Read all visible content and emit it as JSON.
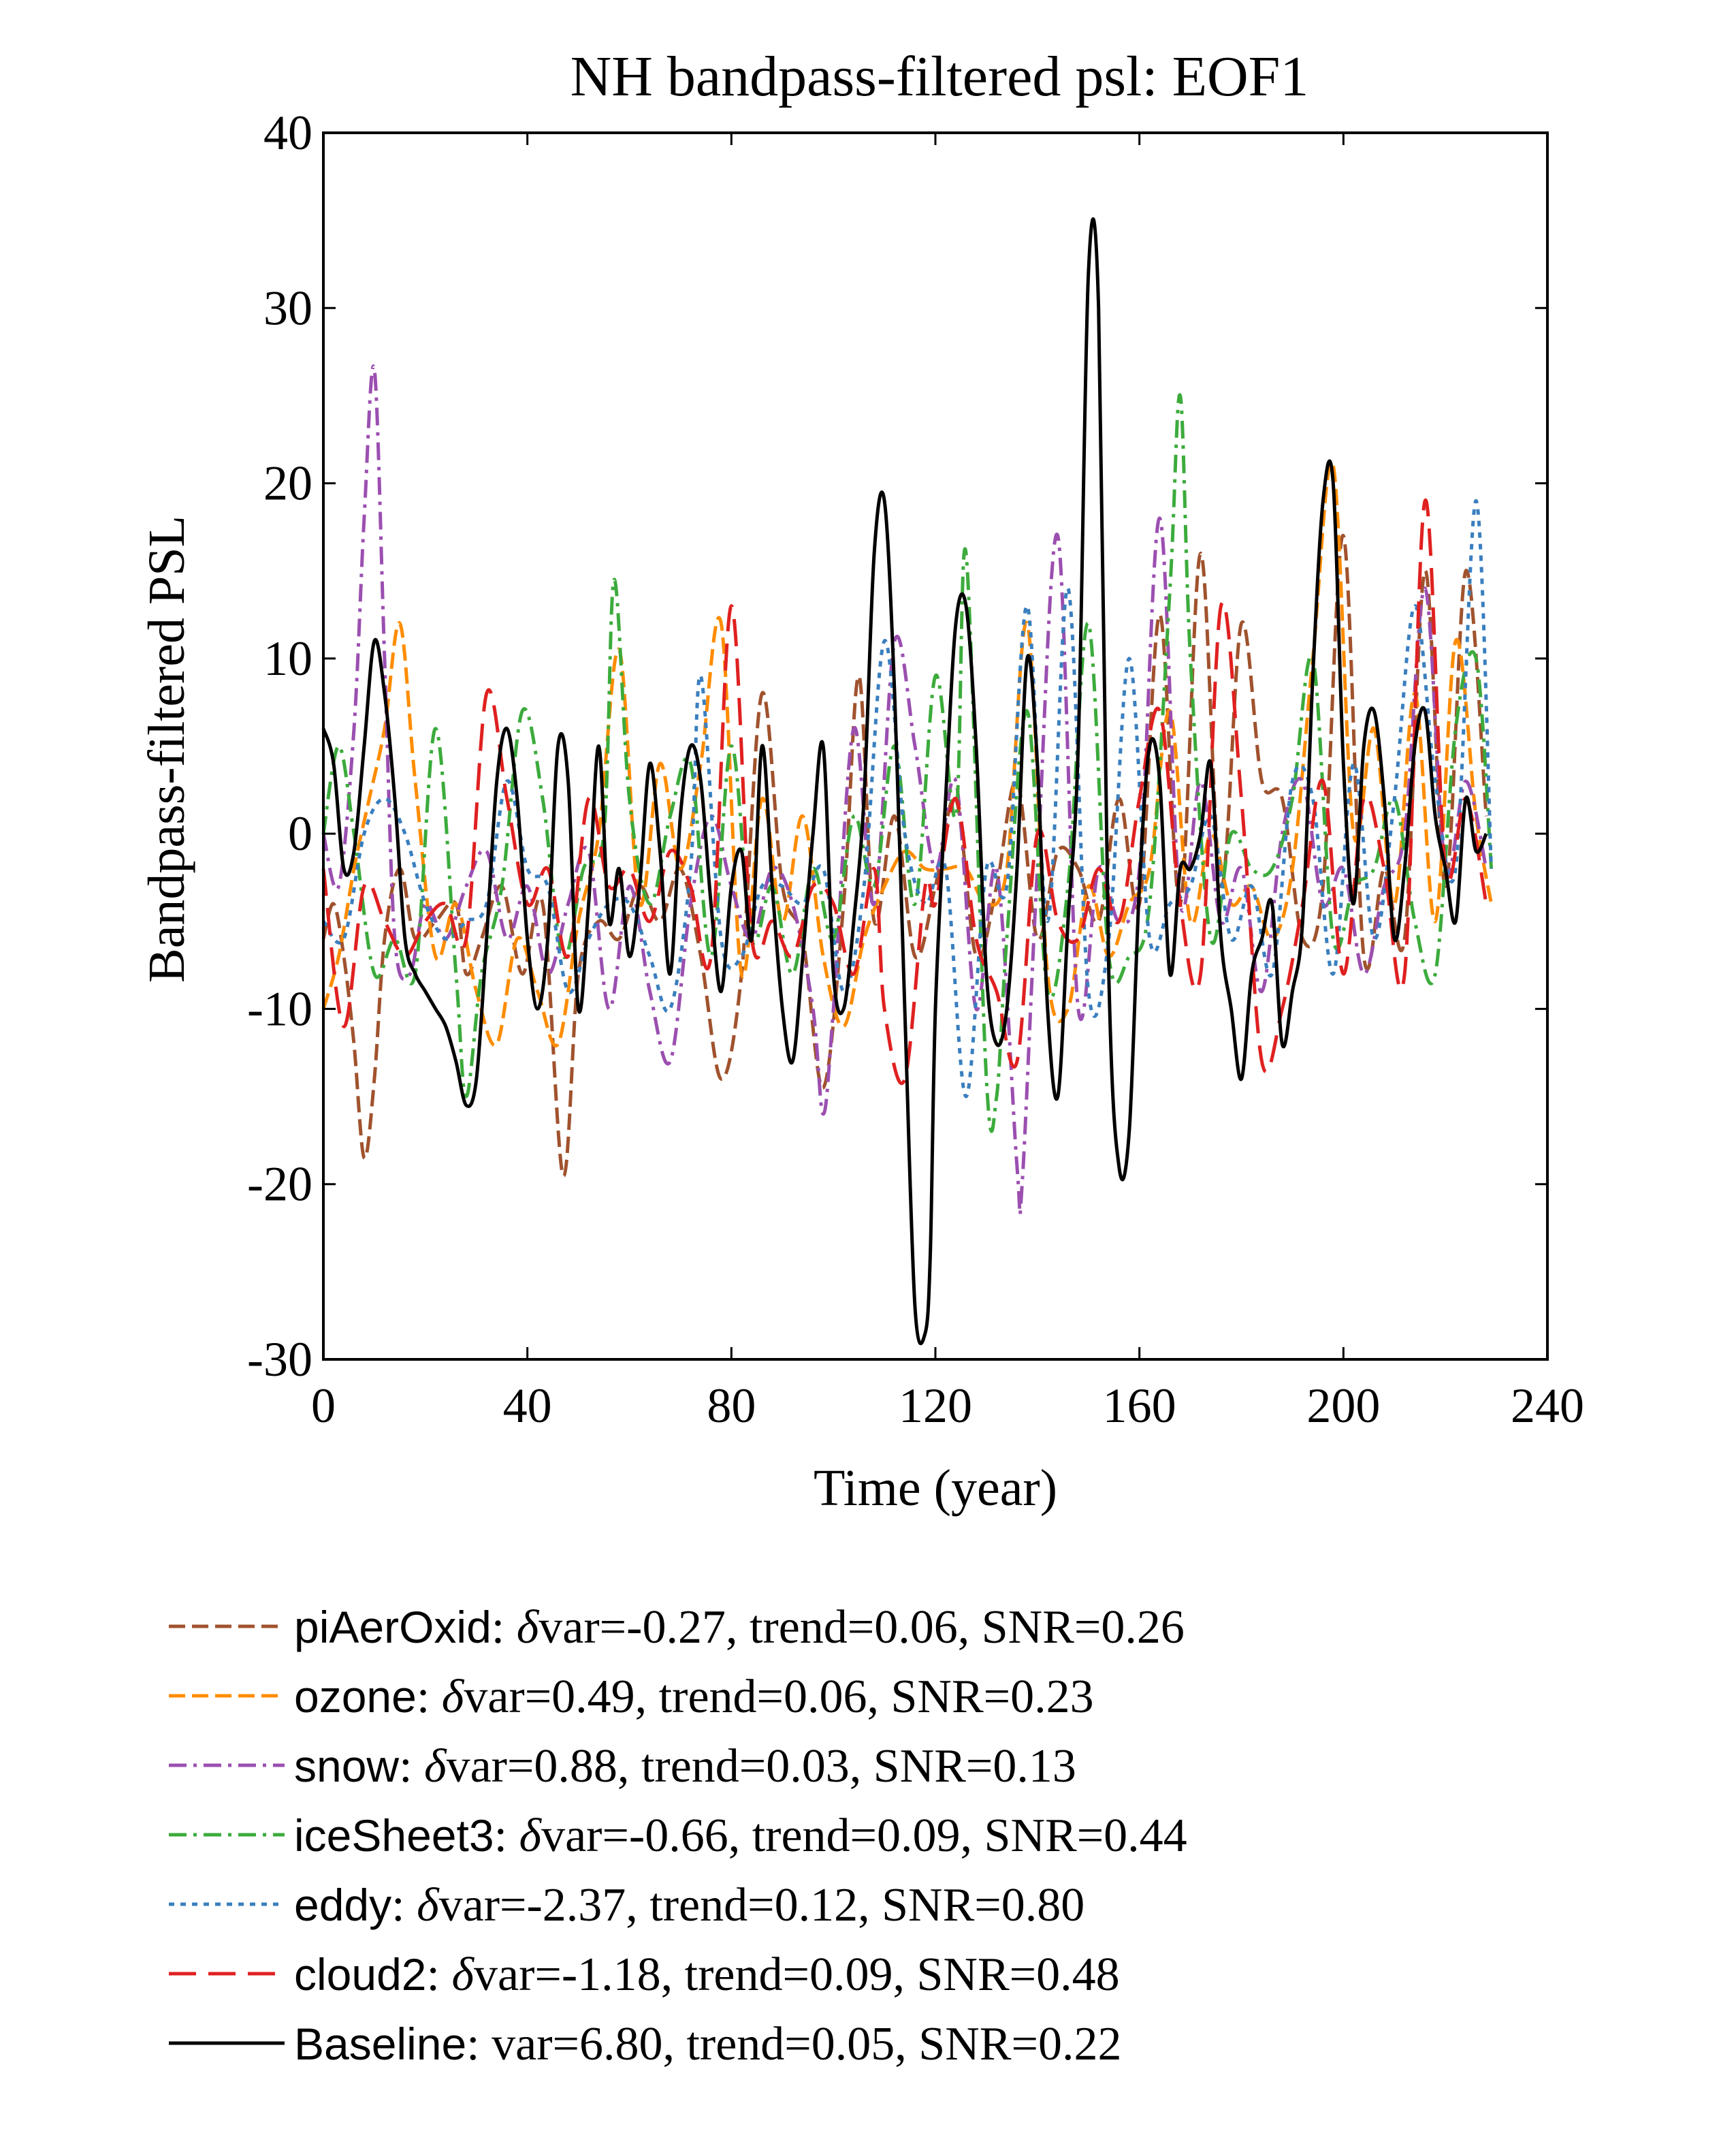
{
  "chart_data": {
    "type": "line",
    "title": "NH bandpass-filtered psl: EOF1",
    "xlabel": "Time (year)",
    "ylabel": "Bandpass-filtered PSL",
    "xlim": [
      0,
      240
    ],
    "ylim": [
      -30,
      40
    ],
    "xticks": [
      0,
      40,
      80,
      120,
      160,
      200,
      240
    ],
    "yticks": [
      -30,
      -20,
      -10,
      0,
      10,
      20,
      30,
      40
    ],
    "legend_position": "below",
    "series": [
      {
        "name": "piAerOxid",
        "stats": "var=-0.27, trend=0.06, SNR=0.26",
        "delta_symbol": "δ",
        "color": "#a0522d",
        "dash": "dash",
        "x": [
          0,
          2,
          4,
          6,
          8,
          10,
          12,
          15,
          18,
          22,
          26,
          28,
          31,
          35,
          39,
          43,
          47,
          50,
          54,
          58,
          62,
          66,
          70,
          74,
          78,
          82,
          86,
          90,
          94,
          98,
          102,
          105,
          108,
          112,
          116,
          120,
          124,
          128,
          132,
          136,
          140,
          144,
          148,
          152,
          156,
          160,
          164,
          168,
          172,
          176,
          180,
          184,
          188,
          192,
          196,
          200,
          204,
          208,
          212,
          216,
          220,
          224,
          228
        ],
        "y": [
          -6,
          -4,
          -7,
          -12,
          -18.5,
          -14,
          -6,
          -2,
          -6,
          -5,
          -4,
          -8,
          -6,
          -3,
          -8,
          -4,
          -19.5,
          -8,
          -5,
          -6,
          -3,
          -5,
          -2,
          -7,
          -14,
          -8,
          8,
          -3,
          -6,
          -14.5,
          -4,
          9,
          -5,
          1,
          -7,
          -3,
          2,
          -7,
          -3,
          3,
          -6,
          -1,
          -2,
          -5,
          2,
          -4,
          12.5,
          -4,
          16,
          -3,
          12,
          3,
          2,
          -6,
          -3,
          17,
          -7,
          -2,
          -6,
          15,
          -3,
          15,
          1
        ]
      },
      {
        "name": "ozone",
        "stats": "var=0.49, trend=0.06, SNR=0.23",
        "delta_symbol": "δ",
        "color": "#ff8c00",
        "dash": "dash",
        "x": [
          0,
          3,
          6,
          9,
          12,
          15,
          18,
          22,
          26,
          30,
          34,
          38,
          42,
          46,
          50,
          54,
          58,
          62,
          66,
          70,
          74,
          78,
          82,
          86,
          90,
          94,
          98,
          102,
          106,
          110,
          114,
          118,
          122,
          126,
          130,
          134,
          138,
          142,
          146,
          150,
          154,
          158,
          162,
          166,
          170,
          174,
          178,
          182,
          186,
          190,
          194,
          198,
          202,
          206,
          210,
          214,
          218,
          222,
          226,
          229
        ],
        "y": [
          -10,
          -7,
          -2,
          2,
          6,
          12,
          3,
          -7,
          -4,
          -9,
          -12,
          -6,
          -9,
          -12,
          -5,
          0,
          10.5,
          -4,
          4,
          -2,
          4,
          12,
          -8,
          2,
          -5,
          1,
          -7,
          -11,
          -6,
          -3,
          -1,
          -2,
          -2,
          -2,
          -4,
          -2,
          12,
          -8,
          -10,
          -3,
          -7,
          -4,
          -2,
          7,
          -5,
          0,
          -4,
          -3,
          -6,
          -2,
          10,
          21,
          0,
          6,
          -4,
          8,
          -5,
          11,
          1,
          -4
        ]
      },
      {
        "name": "snow",
        "stats": "var=0.88, trend=0.03, SNR=0.13",
        "delta_symbol": "δ",
        "color": "#9b4fb0",
        "dash": "dashdot",
        "x": [
          0,
          3,
          6,
          8,
          10,
          12,
          14,
          17,
          20,
          24,
          28,
          32,
          36,
          40,
          44,
          48,
          52,
          56,
          60,
          64,
          68,
          72,
          76,
          80,
          84,
          88,
          92,
          96,
          98,
          100,
          104,
          108,
          112,
          116,
          120,
          124,
          128,
          132,
          136,
          137,
          140,
          144,
          148,
          152,
          156,
          160,
          164,
          168,
          172,
          176,
          180,
          184,
          188,
          192,
          196,
          200,
          204,
          208,
          212,
          216,
          220,
          224,
          228
        ],
        "y": [
          0,
          -3,
          6,
          18,
          26.5,
          10,
          -6,
          -8,
          -4,
          -6,
          -3,
          -1,
          -6,
          -3,
          -8,
          -4,
          -1,
          -10,
          -3,
          -9,
          -13,
          -4,
          1,
          -3,
          -6,
          -2,
          -4,
          -10,
          -16,
          -10,
          6,
          -4,
          11,
          5,
          -2,
          3,
          -10,
          -2,
          -19,
          -20,
          -2,
          17,
          -10,
          -2,
          -5,
          -2,
          18,
          -4,
          3,
          -5,
          -2,
          -9,
          0,
          3,
          -4,
          -2,
          -8,
          -3,
          0,
          14,
          -2,
          3,
          -2
        ]
      },
      {
        "name": "iceSheet3",
        "stats": "var=-0.66, trend=0.09, SNR=0.44",
        "delta_symbol": "δ",
        "color": "#3cab3c",
        "dash": "dashdot",
        "x": [
          0,
          3,
          6,
          10,
          14,
          18,
          22,
          26,
          28,
          31,
          35,
          39,
          43,
          47,
          51,
          55,
          57,
          60,
          64,
          68,
          72,
          76,
          80,
          84,
          88,
          92,
          96,
          100,
          104,
          108,
          112,
          116,
          120,
          124,
          126,
          130,
          132,
          134,
          138,
          142,
          146,
          150,
          154,
          158,
          162,
          166,
          168,
          170,
          174,
          178,
          182,
          186,
          190,
          194,
          198,
          202,
          206,
          210,
          214,
          218,
          222,
          226,
          229
        ],
        "y": [
          0,
          5,
          0,
          -8,
          -6,
          -8,
          6,
          -8,
          -15,
          -8,
          -3,
          7,
          2,
          -7,
          -2,
          0,
          14.5,
          2,
          -4,
          1,
          4,
          -7,
          5,
          -6,
          -3,
          -8,
          -2,
          -6,
          1,
          -3,
          5,
          -4,
          9,
          1,
          16,
          -14,
          -15,
          -6,
          7,
          -9,
          -3,
          12,
          -7,
          -7,
          -4,
          14,
          25,
          10,
          -6,
          0,
          -2,
          -2,
          2,
          10,
          -6,
          -3,
          -2,
          2,
          -5,
          -8,
          6,
          10,
          -2
        ]
      },
      {
        "name": "eddy",
        "stats": "var=-2.37, trend=0.12, SNR=0.80",
        "delta_symbol": "δ",
        "color": "#3a7fbf",
        "dash": "dot",
        "x": [
          0,
          4,
          8,
          12,
          16,
          20,
          24,
          28,
          32,
          36,
          40,
          44,
          48,
          52,
          56,
          60,
          64,
          68,
          72,
          74,
          78,
          82,
          86,
          90,
          94,
          98,
          102,
          106,
          110,
          114,
          118,
          122,
          126,
          130,
          134,
          138,
          142,
          146,
          150,
          154,
          158,
          162,
          166,
          170,
          174,
          178,
          182,
          186,
          190,
          194,
          198,
          202,
          206,
          210,
          214,
          218,
          222,
          226,
          229
        ],
        "y": [
          -5,
          -6,
          0,
          2,
          0,
          -4,
          -6,
          -5,
          -4,
          3,
          -2,
          -3,
          -9,
          -6,
          -4,
          -4,
          -7,
          -10,
          -2,
          9,
          -6,
          -7,
          -3,
          -3,
          -4,
          -2,
          -9,
          -3,
          11,
          0,
          -4,
          -2,
          -15,
          -2,
          -3,
          13,
          -5,
          14,
          -9,
          -6,
          10,
          -6,
          -4,
          -3,
          1,
          -6,
          -3,
          -8,
          3,
          2,
          -8,
          4,
          -6,
          2,
          13,
          3,
          -2,
          19,
          -2
        ]
      },
      {
        "name": "cloud2",
        "stats": "var=-1.18, trend=0.09, SNR=0.48",
        "delta_symbol": "δ",
        "color": "#e02020",
        "dash": "longdash",
        "x": [
          0,
          4,
          8,
          12,
          16,
          20,
          24,
          28,
          32,
          36,
          40,
          44,
          48,
          52,
          56,
          60,
          64,
          68,
          72,
          76,
          80,
          84,
          88,
          92,
          96,
          100,
          104,
          108,
          110,
          114,
          118,
          120,
          124,
          128,
          132,
          136,
          140,
          144,
          148,
          152,
          156,
          160,
          164,
          168,
          172,
          176,
          180,
          184,
          188,
          192,
          196,
          200,
          204,
          208,
          212,
          216,
          220,
          224,
          228
        ],
        "y": [
          -2,
          -11,
          -3,
          -5,
          -7,
          -5,
          -4,
          -6,
          8,
          2,
          -4,
          -2,
          -7,
          2,
          -3,
          -2,
          -5,
          -1,
          -3,
          -7,
          13,
          -6,
          -5,
          -7,
          -3,
          -4,
          -8,
          -2,
          -10,
          -14,
          -3,
          -4,
          2,
          -6,
          -9,
          -13,
          0,
          -5,
          -6,
          -2,
          -5,
          2,
          7,
          -4,
          -8,
          13,
          2,
          -13,
          -10,
          -4,
          3,
          -8,
          2,
          -2,
          -8,
          19,
          -2,
          2,
          -4
        ]
      },
      {
        "name": "Baseline",
        "stats": "var=6.80, trend=0.05, SNR=0.22",
        "delta_symbol": "",
        "color": "#000000",
        "dash": "solid",
        "x": [
          0,
          2,
          4,
          6,
          8,
          10,
          12,
          14,
          16,
          18,
          20,
          22,
          24,
          26,
          28,
          30,
          32,
          34,
          36,
          38,
          40,
          42,
          44,
          46,
          48,
          50,
          52,
          54,
          56,
          58,
          60,
          62,
          64,
          66,
          68,
          70,
          72,
          74,
          76,
          78,
          80,
          82,
          84,
          86,
          88,
          90,
          92,
          94,
          96,
          98,
          100,
          102,
          104,
          106,
          108,
          110,
          112,
          114,
          116,
          118,
          119,
          120,
          122,
          124,
          126,
          128,
          130,
          132,
          134,
          136,
          138,
          140,
          142,
          144,
          146,
          148,
          150,
          152,
          154,
          156,
          158,
          160,
          162,
          164,
          166,
          168,
          170,
          172,
          174,
          176,
          178,
          180,
          182,
          184,
          186,
          188,
          190,
          192,
          194,
          196,
          198,
          200,
          202,
          204,
          206,
          208,
          210,
          212,
          214,
          216,
          218,
          220,
          222,
          224,
          226,
          228
        ],
        "y": [
          6,
          4,
          -2,
          -1,
          5,
          11,
          8,
          2,
          -6,
          -8,
          -9,
          -10,
          -11,
          -13,
          -15.5,
          -14,
          -6,
          3,
          6,
          2,
          -6,
          -10,
          -6,
          5,
          3,
          -10,
          -4,
          5,
          -5,
          -2,
          -7,
          -3,
          4,
          -1,
          -8,
          1,
          5,
          3,
          -4,
          -9,
          -3,
          -1,
          -6,
          5,
          -3,
          -10,
          -13,
          -7,
          0,
          5,
          -8,
          -10,
          -5,
          2,
          16,
          19,
          8,
          -10,
          -27,
          -28.5,
          -24,
          -10,
          2,
          12,
          13,
          5,
          -8,
          -12,
          -10,
          -2,
          10,
          4,
          -10,
          -15,
          -5,
          5,
          32,
          30,
          -8,
          -19,
          -17,
          -3,
          5,
          3,
          -8,
          -2,
          -2,
          0,
          4,
          -6,
          -10,
          -14,
          -8,
          -6,
          -4,
          -12,
          -9,
          -5,
          9,
          19,
          20,
          4,
          -4,
          5,
          7,
          2,
          -6,
          -2,
          5,
          7,
          1,
          -2,
          -5,
          2,
          -1,
          0
        ]
      }
    ]
  }
}
